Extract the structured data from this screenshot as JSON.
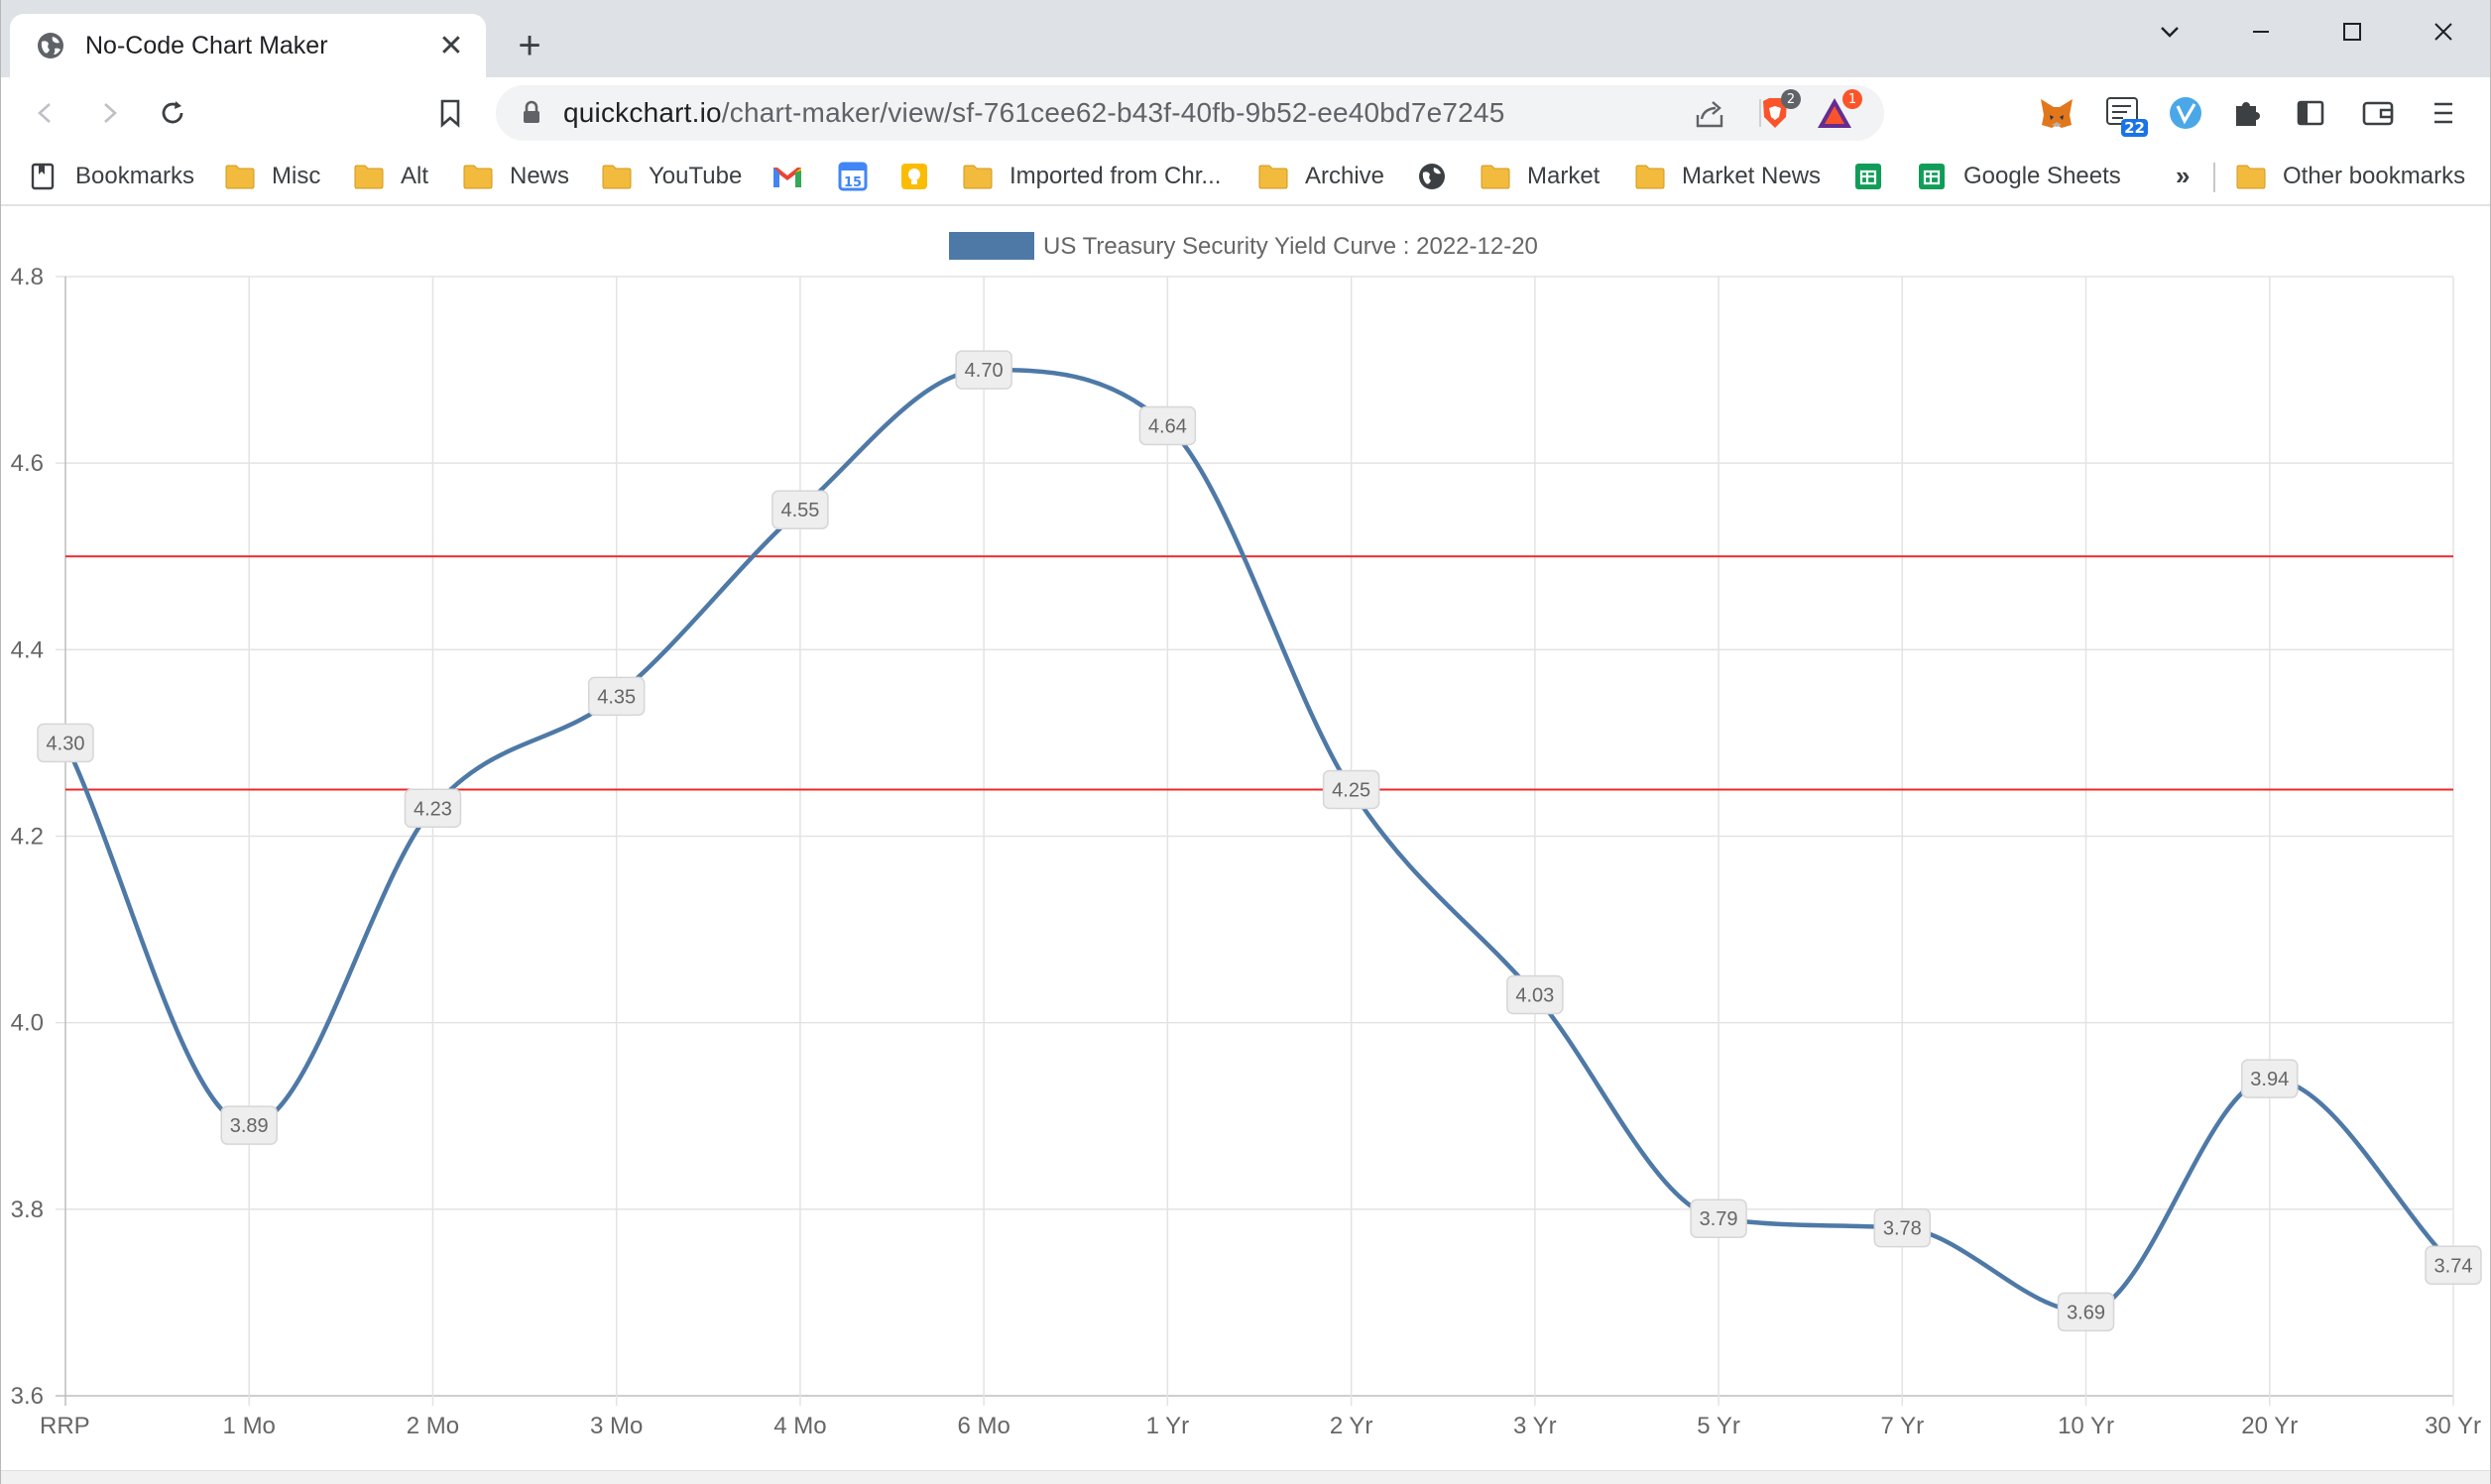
{
  "browser": {
    "tab": {
      "title": "No-Code Chart Maker",
      "close_label": "✕",
      "favicon": "globe-icon"
    },
    "new_tab_label": "+",
    "window_controls": {
      "minimize": "chevron-down-icon",
      "restore": "minimize-icon",
      "maximize": "maximize-icon",
      "close": "close-icon"
    },
    "omnibox": {
      "url_host": "quickchart.io",
      "url_path": "/chart-maker/view/sf-761cee62-b43f-40fb-9b52-ee40bd7e7245"
    },
    "toolbar_badges": {
      "brave_shield_count": "2",
      "rewards_count": "1",
      "extension_badge": "22"
    }
  },
  "bookmarks": {
    "items": [
      {
        "label": "Bookmarks",
        "icon": "bookmarks-manager-icon"
      },
      {
        "label": "Misc",
        "icon": "folder-icon"
      },
      {
        "label": "Alt",
        "icon": "folder-icon"
      },
      {
        "label": "News",
        "icon": "folder-icon"
      },
      {
        "label": "YouTube",
        "icon": "folder-icon"
      },
      {
        "label": "",
        "icon": "gmail-icon"
      },
      {
        "label": "",
        "icon": "calendar-icon"
      },
      {
        "label": "",
        "icon": "keep-icon"
      },
      {
        "label": "Imported from Chr...",
        "icon": "folder-icon"
      },
      {
        "label": "Archive",
        "icon": "folder-icon"
      },
      {
        "label": "",
        "icon": "globe-icon"
      },
      {
        "label": "Market",
        "icon": "folder-icon"
      },
      {
        "label": "Market News",
        "icon": "folder-icon"
      },
      {
        "label": "",
        "icon": "sheets-icon"
      },
      {
        "label": "Google Sheets",
        "icon": "sheets-icon"
      }
    ],
    "more_label": "»",
    "other_label": "Other bookmarks"
  },
  "chart_data": {
    "type": "line",
    "legend": "US Treasury Security Yield Curve : 2022-12-20",
    "legend_position": "top",
    "categories": [
      "RRP",
      "1 Mo",
      "2 Mo",
      "3 Mo",
      "4 Mo",
      "6 Mo",
      "1 Yr",
      "2 Yr",
      "3 Yr",
      "5 Yr",
      "7 Yr",
      "10 Yr",
      "20 Yr",
      "30 Yr"
    ],
    "series": [
      {
        "name": "US Treasury Security Yield Curve : 2022-12-20",
        "values": [
          4.3,
          3.89,
          4.23,
          4.35,
          4.55,
          4.7,
          4.64,
          4.25,
          4.03,
          3.79,
          3.78,
          3.69,
          3.94,
          3.74
        ],
        "labels": [
          "4.30",
          "3.89",
          "4.23",
          "4.35",
          "4.55",
          "4.70",
          "4.64",
          "4.25",
          "4.03",
          "3.79",
          "3.78",
          "3.69",
          "3.94",
          "3.74"
        ],
        "color": "#4e79a7"
      }
    ],
    "reference_lines": [
      {
        "value": 4.5,
        "color": "#ee2a2a"
      },
      {
        "value": 4.25,
        "color": "#ee2a2a"
      }
    ],
    "ylim": [
      3.6,
      4.8
    ],
    "y_ticks": [
      "3.6",
      "3.8",
      "4.0",
      "4.2",
      "4.4",
      "4.6",
      "4.8"
    ],
    "grid": true,
    "smooth": true
  }
}
